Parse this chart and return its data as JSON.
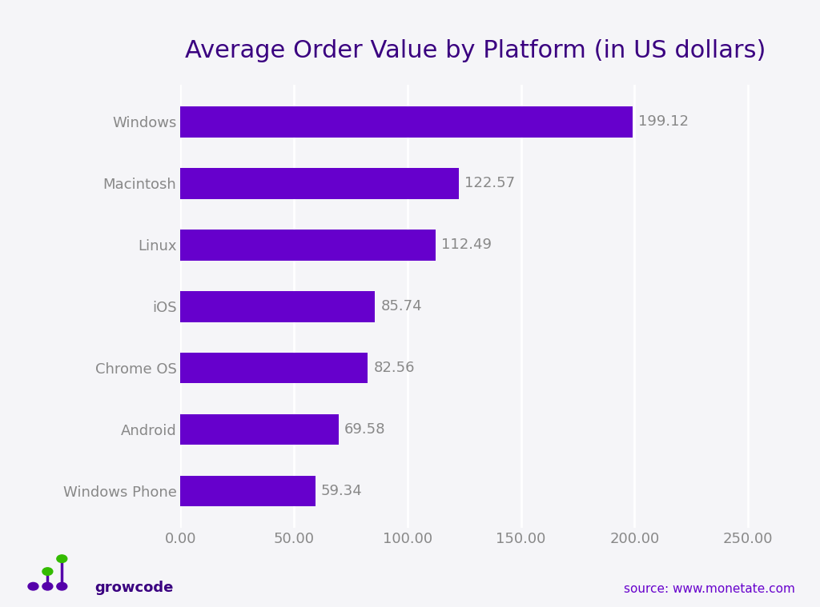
{
  "title": "Average Order Value by Platform (in US dollars)",
  "title_color": "#3a0080",
  "title_fontsize": 22,
  "categories": [
    "Windows Phone",
    "Android",
    "Chrome OS",
    "iOS",
    "Linux",
    "Macintosh",
    "Windows"
  ],
  "values": [
    59.34,
    69.58,
    82.56,
    85.74,
    112.49,
    122.57,
    199.12
  ],
  "bar_color": "#6600cc",
  "background_color": "#f5f5f8",
  "label_color": "#888888",
  "value_label_color": "#888888",
  "tick_label_fontsize": 13,
  "value_label_fontsize": 13,
  "xlim": [
    0,
    260
  ],
  "xticks": [
    0,
    50,
    100,
    150,
    200,
    250
  ],
  "xtick_labels": [
    "0.00",
    "50.00",
    "100.00",
    "150.00",
    "200.00",
    "250.00"
  ],
  "source_text": "source: www.monetate.com",
  "source_color": "#6600cc",
  "growcode_text": "growcode",
  "growcode_color": "#3a0080",
  "bar_height": 0.5,
  "grid_color": "#ffffff",
  "logo_dot_colors": [
    "#5500aa",
    "#33bb00",
    "#5500aa",
    "#33bb00",
    "#5500aa",
    "#33bb00"
  ],
  "logo_dot_purple": "#5500aa",
  "logo_dot_green": "#33bb00"
}
